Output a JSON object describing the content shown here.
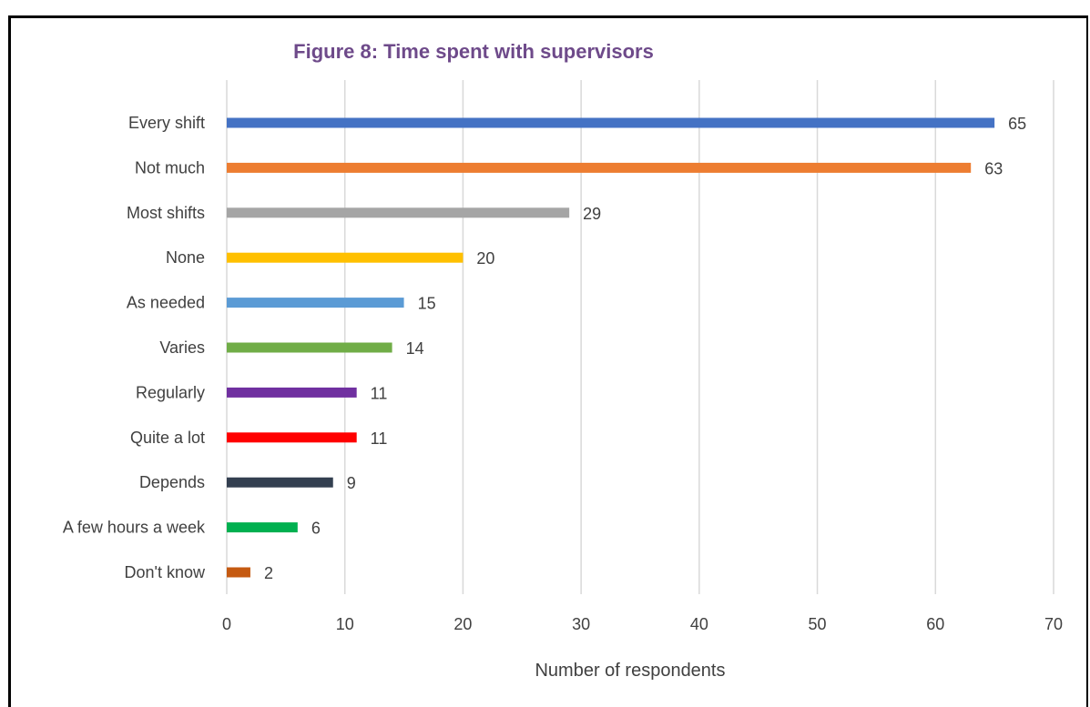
{
  "chart_data": {
    "type": "bar",
    "orientation": "horizontal",
    "title": "Figure 8: Time spent with supervisors",
    "xlabel": "Number of respondents",
    "ylabel": "",
    "xlim": [
      0,
      70
    ],
    "x_ticks": [
      0,
      10,
      20,
      30,
      40,
      50,
      60,
      70
    ],
    "grid": true,
    "categories": [
      "Every shift",
      "Not much",
      "Most shifts",
      "None",
      "As needed",
      "Varies",
      "Regularly",
      "Quite a lot",
      "Depends",
      "A few hours a week",
      "Don't know"
    ],
    "values": [
      65,
      63,
      29,
      20,
      15,
      14,
      11,
      11,
      9,
      6,
      2
    ],
    "colors": [
      "#4472c4",
      "#ed7d31",
      "#a5a5a5",
      "#ffc000",
      "#5b9bd5",
      "#70ad47",
      "#7030a0",
      "#ff0000",
      "#333f50",
      "#00b050",
      "#c55a11"
    ],
    "title_color": "#6e4a8a"
  }
}
